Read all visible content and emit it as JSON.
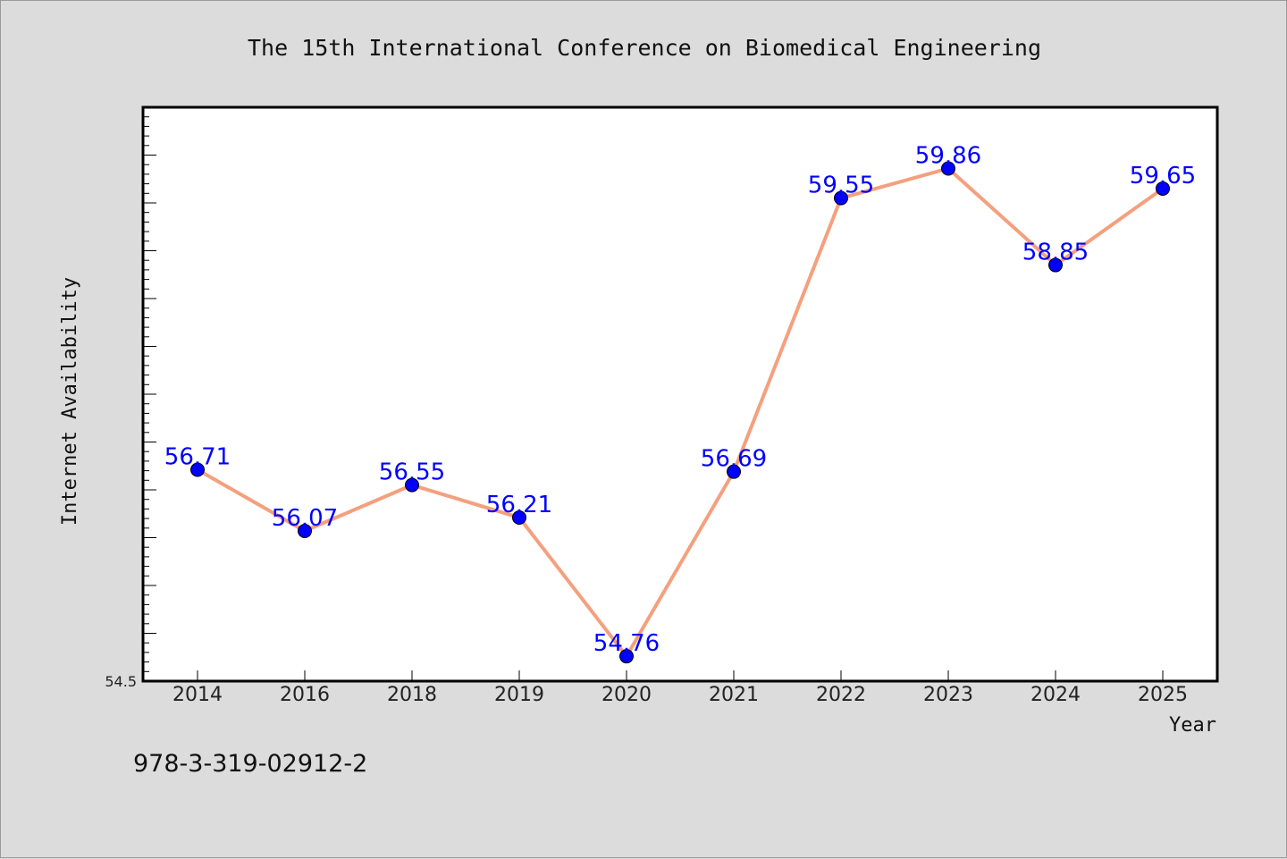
{
  "chart_data": {
    "type": "line",
    "title": "The 15th International Conference on Biomedical Engineering",
    "xlabel": "Year",
    "ylabel": "Internet Availability",
    "categories": [
      "2014",
      "2016",
      "2018",
      "2019",
      "2020",
      "2021",
      "2022",
      "2023",
      "2024",
      "2025"
    ],
    "series": [
      {
        "values": [
          56.71,
          56.07,
          56.55,
          56.21,
          54.76,
          56.69,
          59.55,
          59.86,
          58.85,
          59.65
        ],
        "labels": [
          "56.71",
          "56.07",
          "56.55",
          "56.21",
          "54.76",
          "56.69",
          "59.55",
          "59.86",
          "58.85",
          "59.65"
        ],
        "line_color": "#f4a07e",
        "marker_color": "#0000ff",
        "label_color": "#0000ff"
      }
    ],
    "ylim": [
      54.5,
      60.5
    ],
    "y_tick_labels": [
      "54.5"
    ],
    "grid": false,
    "footer_text": "978-3-319-02912-2"
  }
}
